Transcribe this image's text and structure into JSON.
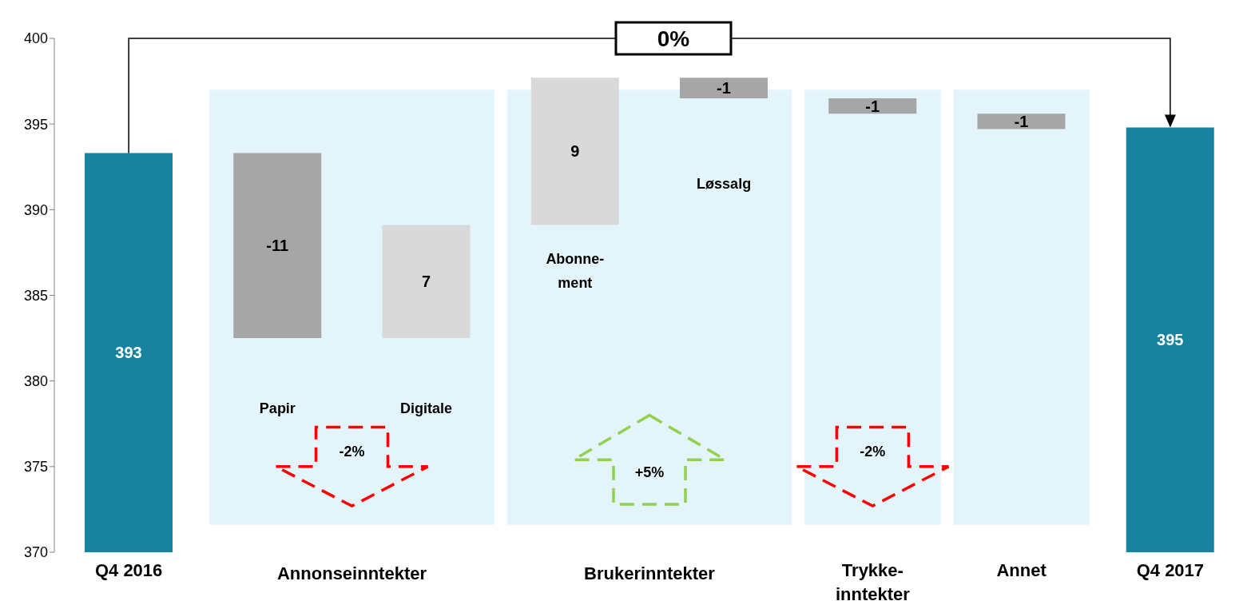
{
  "chart_data": {
    "type": "bar",
    "categories": [
      "Q4 2016",
      "Papir",
      "Digitale",
      "Abonne-ment",
      "Løssalg",
      "Trykke-inntekter",
      "Annet",
      "Q4 2017"
    ],
    "values": [
      393.3,
      -10.8,
      6.6,
      8.6,
      -1.2,
      -0.9,
      -0.9,
      394.8
    ],
    "base": [
      null,
      393.3,
      382.5,
      389.1,
      397.7,
      396.5,
      395.6,
      null
    ],
    "colors": [
      "#17839f",
      "#a6a6a6",
      "#d9d9d9",
      "#d9d9d9",
      "#a6a6a6",
      "#a6a6a6",
      "#a6a6a6",
      "#17839f"
    ],
    "value_labels": [
      "393",
      "-11",
      "7",
      "9",
      "-1",
      "-1",
      "-1",
      "395"
    ],
    "ylim": [
      370,
      400
    ],
    "yticks": [
      370,
      375,
      380,
      385,
      390,
      395,
      400
    ],
    "bands": [
      {
        "axis": "x",
        "from": "Papir",
        "to": "Digitale",
        "label": "Annonseinntekter",
        "color": "#e3f4fb"
      },
      {
        "axis": "x",
        "from": "Abonne-ment",
        "to": "Løssalg",
        "label": "Brukerinntekter",
        "color": "#e3f4fb"
      },
      {
        "axis": "x",
        "from": "Trykke-inntekter",
        "to": "Trykke-inntekter",
        "color": "#e3f4fb"
      },
      {
        "axis": "x",
        "from": "Annet",
        "to": "Annet",
        "color": "#e3f4fb"
      }
    ],
    "annotations": [
      "0%",
      "-2%",
      "+5%",
      "-2%"
    ]
  }
}
